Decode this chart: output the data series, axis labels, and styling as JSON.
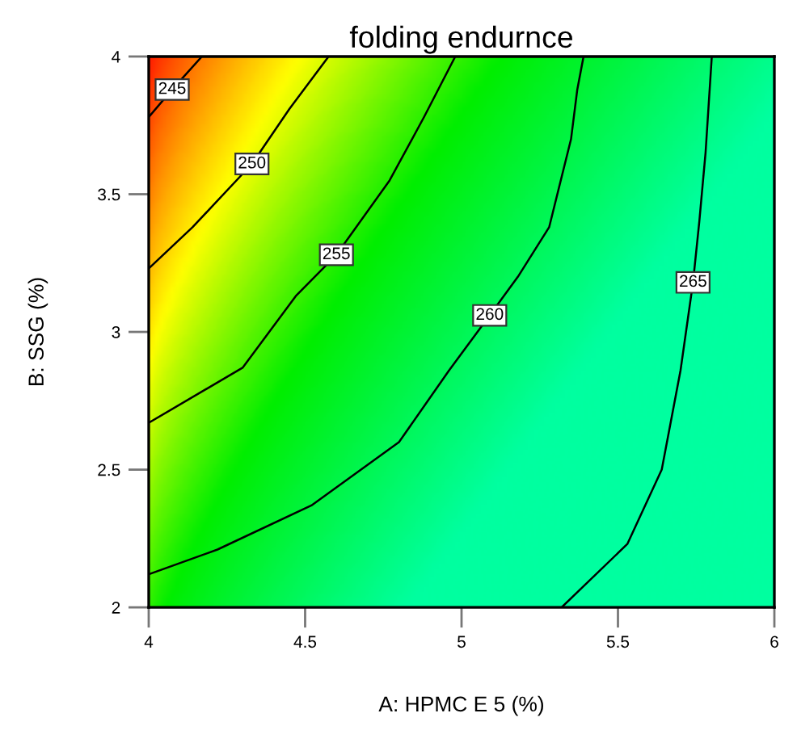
{
  "chart_data": {
    "type": "line",
    "title": "folding endurnce",
    "xlabel": "A: HPMC E 5 (%)",
    "ylabel": "B: SSG (%)",
    "xlim": [
      4,
      6
    ],
    "ylim": [
      2,
      4
    ],
    "xticks": [
      4,
      4.5,
      5,
      5.5,
      6
    ],
    "yticks": [
      2,
      2.5,
      3,
      3.5,
      4
    ],
    "grid": false,
    "legend": false,
    "line_style": "solid",
    "marker": "none",
    "series": [
      {
        "name": "245",
        "color": "#000000",
        "x": [
          4.17,
          4.075,
          4.0
        ],
        "values": [
          4.0,
          3.88,
          3.78
        ]
      },
      {
        "name": "250",
        "color": "#000000",
        "x": [
          4.575,
          4.45,
          4.33,
          4.14,
          4.0
        ],
        "values": [
          4.0,
          3.81,
          3.61,
          3.38,
          3.23
        ]
      },
      {
        "name": "255",
        "color": "#000000",
        "x": [
          4.98,
          4.88,
          4.77,
          4.6,
          4.47,
          4.3,
          4.0
        ],
        "values": [
          4.0,
          3.78,
          3.55,
          3.28,
          3.13,
          2.87,
          2.67
        ]
      },
      {
        "name": "260",
        "color": "#000000",
        "x": [
          5.39,
          5.37,
          5.35,
          5.28,
          5.18,
          5.09,
          4.96,
          4.8,
          4.52,
          4.22,
          4.0
        ],
        "values": [
          4.0,
          3.88,
          3.7,
          3.38,
          3.2,
          3.06,
          2.86,
          2.6,
          2.37,
          2.21,
          2.12
        ]
      },
      {
        "name": "265",
        "color": "#000000",
        "x": [
          5.8,
          5.78,
          5.76,
          5.74,
          5.7,
          5.64,
          5.53,
          5.32
        ],
        "values": [
          4.0,
          3.65,
          3.4,
          3.18,
          2.86,
          2.5,
          2.23,
          2.0
        ]
      }
    ]
  }
}
